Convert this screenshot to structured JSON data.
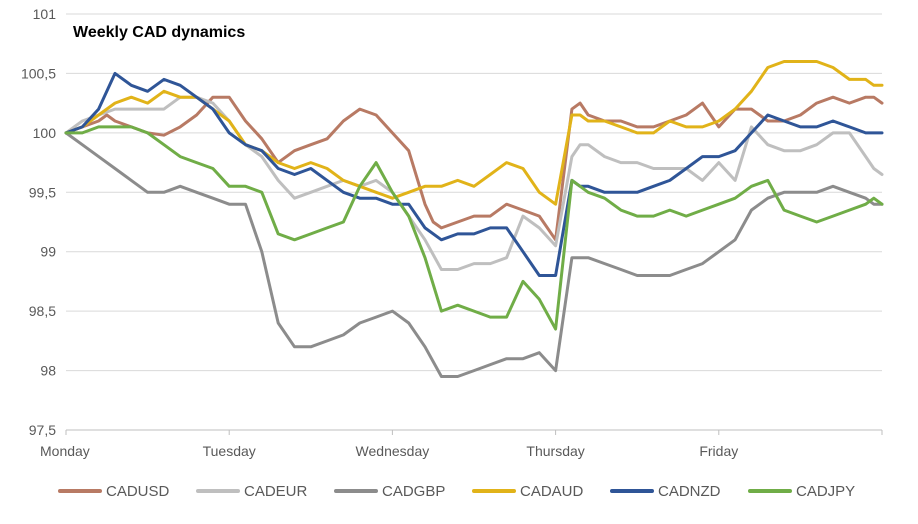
{
  "chart_data": {
    "type": "line",
    "title": "Weekly CAD dynamics",
    "xlabel": "",
    "ylabel": "",
    "x_tick_labels": [
      "Monday",
      "Tuesday",
      "Wednesday",
      "Thursday",
      "Friday"
    ],
    "y_ticks": [
      "97,5",
      "98",
      "98,5",
      "99",
      "99,5",
      "100",
      "100,5",
      "101"
    ],
    "y_tick_values": [
      97.5,
      98,
      98.5,
      99,
      99.5,
      100,
      100.5,
      101
    ],
    "ylim": [
      97.5,
      101
    ],
    "xlim": [
      0,
      5
    ],
    "grid": true,
    "legend_position": "bottom",
    "series": [
      {
        "name": "CADUSD",
        "color": "#B87A64",
        "x": [
          0,
          0.1,
          0.2,
          0.25,
          0.3,
          0.4,
          0.5,
          0.6,
          0.7,
          0.8,
          0.9,
          1.0,
          1.1,
          1.2,
          1.3,
          1.4,
          1.5,
          1.6,
          1.7,
          1.8,
          1.9,
          2.0,
          2.1,
          2.2,
          2.25,
          2.3,
          2.4,
          2.5,
          2.6,
          2.7,
          2.8,
          2.9,
          3.0,
          3.1,
          3.15,
          3.2,
          3.3,
          3.4,
          3.5,
          3.6,
          3.7,
          3.8,
          3.9,
          4.0,
          4.1,
          4.2,
          4.3,
          4.4,
          4.5,
          4.6,
          4.7,
          4.8,
          4.9,
          4.95,
          5.0
        ],
        "y": [
          100.0,
          100.05,
          100.1,
          100.15,
          100.1,
          100.05,
          100.0,
          99.98,
          100.05,
          100.15,
          100.3,
          100.3,
          100.1,
          99.95,
          99.75,
          99.85,
          99.9,
          99.95,
          100.1,
          100.2,
          100.15,
          100.0,
          99.85,
          99.4,
          99.25,
          99.2,
          99.25,
          99.3,
          99.3,
          99.4,
          99.35,
          99.3,
          99.1,
          100.2,
          100.25,
          100.15,
          100.1,
          100.1,
          100.05,
          100.05,
          100.1,
          100.15,
          100.25,
          100.05,
          100.2,
          100.2,
          100.1,
          100.1,
          100.15,
          100.25,
          100.3,
          100.25,
          100.3,
          100.3,
          100.25
        ]
      },
      {
        "name": "CADEUR",
        "color": "#BFBFBF",
        "x": [
          0,
          0.1,
          0.2,
          0.3,
          0.4,
          0.5,
          0.6,
          0.7,
          0.8,
          0.9,
          1.0,
          1.1,
          1.2,
          1.3,
          1.4,
          1.5,
          1.6,
          1.7,
          1.8,
          1.9,
          2.0,
          2.1,
          2.2,
          2.3,
          2.4,
          2.5,
          2.6,
          2.7,
          2.8,
          2.9,
          3.0,
          3.1,
          3.15,
          3.2,
          3.3,
          3.4,
          3.5,
          3.6,
          3.7,
          3.8,
          3.9,
          4.0,
          4.1,
          4.2,
          4.3,
          4.4,
          4.5,
          4.6,
          4.7,
          4.8,
          4.9,
          4.95,
          5.0
        ],
        "y": [
          100.0,
          100.1,
          100.15,
          100.2,
          100.2,
          100.2,
          100.2,
          100.3,
          100.3,
          100.25,
          100.1,
          99.9,
          99.8,
          99.6,
          99.45,
          99.5,
          99.55,
          99.6,
          99.55,
          99.6,
          99.5,
          99.3,
          99.1,
          98.85,
          98.85,
          98.9,
          98.9,
          98.95,
          99.3,
          99.2,
          99.05,
          99.8,
          99.9,
          99.9,
          99.8,
          99.75,
          99.75,
          99.7,
          99.7,
          99.7,
          99.6,
          99.75,
          99.6,
          100.05,
          99.9,
          99.85,
          99.85,
          99.9,
          100.0,
          100.0,
          99.8,
          99.7,
          99.65
        ]
      },
      {
        "name": "CADGBP",
        "color": "#8C8C8C",
        "x": [
          0,
          0.1,
          0.2,
          0.3,
          0.4,
          0.5,
          0.6,
          0.7,
          0.8,
          0.9,
          1.0,
          1.1,
          1.2,
          1.3,
          1.4,
          1.5,
          1.6,
          1.7,
          1.8,
          1.9,
          2.0,
          2.1,
          2.2,
          2.3,
          2.4,
          2.5,
          2.6,
          2.7,
          2.8,
          2.9,
          3.0,
          3.1,
          3.15,
          3.2,
          3.3,
          3.4,
          3.5,
          3.6,
          3.7,
          3.8,
          3.9,
          4.0,
          4.1,
          4.2,
          4.3,
          4.4,
          4.5,
          4.6,
          4.7,
          4.8,
          4.9,
          4.95,
          5.0
        ],
        "y": [
          100.0,
          99.9,
          99.8,
          99.7,
          99.6,
          99.5,
          99.5,
          99.55,
          99.5,
          99.45,
          99.4,
          99.4,
          99.0,
          98.4,
          98.2,
          98.2,
          98.25,
          98.3,
          98.4,
          98.45,
          98.5,
          98.4,
          98.2,
          97.95,
          97.95,
          98.0,
          98.05,
          98.1,
          98.1,
          98.15,
          98.0,
          98.95,
          98.95,
          98.95,
          98.9,
          98.85,
          98.8,
          98.8,
          98.8,
          98.85,
          98.9,
          99.0,
          99.1,
          99.35,
          99.45,
          99.5,
          99.5,
          99.5,
          99.55,
          99.5,
          99.45,
          99.4,
          99.4
        ]
      },
      {
        "name": "CADAUD",
        "color": "#E1B319",
        "x": [
          0,
          0.1,
          0.2,
          0.3,
          0.4,
          0.5,
          0.6,
          0.7,
          0.8,
          0.9,
          1.0,
          1.1,
          1.2,
          1.3,
          1.4,
          1.5,
          1.6,
          1.7,
          1.8,
          1.9,
          2.0,
          2.1,
          2.2,
          2.3,
          2.4,
          2.5,
          2.6,
          2.7,
          2.8,
          2.9,
          3.0,
          3.1,
          3.15,
          3.2,
          3.3,
          3.4,
          3.5,
          3.6,
          3.7,
          3.8,
          3.9,
          4.0,
          4.1,
          4.2,
          4.3,
          4.4,
          4.5,
          4.6,
          4.7,
          4.8,
          4.9,
          4.95,
          5.0
        ],
        "y": [
          100.0,
          100.05,
          100.15,
          100.25,
          100.3,
          100.25,
          100.35,
          100.3,
          100.3,
          100.2,
          100.1,
          99.9,
          99.85,
          99.75,
          99.7,
          99.75,
          99.7,
          99.6,
          99.55,
          99.5,
          99.45,
          99.5,
          99.55,
          99.55,
          99.6,
          99.55,
          99.65,
          99.75,
          99.7,
          99.5,
          99.4,
          100.15,
          100.15,
          100.1,
          100.1,
          100.05,
          100.0,
          100.0,
          100.1,
          100.05,
          100.05,
          100.1,
          100.2,
          100.35,
          100.55,
          100.6,
          100.6,
          100.6,
          100.55,
          100.45,
          100.45,
          100.4,
          100.4
        ]
      },
      {
        "name": "CADNZD",
        "color": "#2F5597",
        "x": [
          0,
          0.1,
          0.2,
          0.3,
          0.4,
          0.5,
          0.6,
          0.7,
          0.8,
          0.9,
          1.0,
          1.1,
          1.2,
          1.3,
          1.4,
          1.5,
          1.6,
          1.7,
          1.8,
          1.9,
          2.0,
          2.1,
          2.2,
          2.3,
          2.4,
          2.5,
          2.6,
          2.7,
          2.8,
          2.9,
          3.0,
          3.1,
          3.15,
          3.2,
          3.3,
          3.4,
          3.5,
          3.6,
          3.7,
          3.8,
          3.9,
          4.0,
          4.1,
          4.2,
          4.3,
          4.4,
          4.5,
          4.6,
          4.7,
          4.8,
          4.9,
          4.95,
          5.0
        ],
        "y": [
          100.0,
          100.05,
          100.2,
          100.5,
          100.4,
          100.35,
          100.45,
          100.4,
          100.3,
          100.2,
          100.0,
          99.9,
          99.85,
          99.7,
          99.65,
          99.7,
          99.6,
          99.5,
          99.45,
          99.45,
          99.4,
          99.4,
          99.2,
          99.1,
          99.15,
          99.15,
          99.2,
          99.2,
          99.0,
          98.8,
          98.8,
          99.6,
          99.55,
          99.55,
          99.5,
          99.5,
          99.5,
          99.55,
          99.6,
          99.7,
          99.8,
          99.8,
          99.85,
          100.0,
          100.15,
          100.1,
          100.05,
          100.05,
          100.1,
          100.05,
          100.0,
          100.0,
          100.0
        ]
      },
      {
        "name": "CADJPY",
        "color": "#70AD47",
        "x": [
          0,
          0.1,
          0.2,
          0.3,
          0.4,
          0.5,
          0.6,
          0.7,
          0.8,
          0.9,
          1.0,
          1.1,
          1.2,
          1.3,
          1.4,
          1.5,
          1.6,
          1.7,
          1.8,
          1.9,
          2.0,
          2.1,
          2.2,
          2.3,
          2.4,
          2.5,
          2.6,
          2.7,
          2.8,
          2.9,
          3.0,
          3.1,
          3.15,
          3.2,
          3.3,
          3.4,
          3.5,
          3.6,
          3.7,
          3.8,
          3.9,
          4.0,
          4.1,
          4.2,
          4.3,
          4.4,
          4.5,
          4.6,
          4.7,
          4.8,
          4.9,
          4.95,
          5.0
        ],
        "y": [
          100.0,
          100.0,
          100.05,
          100.05,
          100.05,
          100.0,
          99.9,
          99.8,
          99.75,
          99.7,
          99.55,
          99.55,
          99.5,
          99.15,
          99.1,
          99.15,
          99.2,
          99.25,
          99.55,
          99.75,
          99.5,
          99.3,
          98.95,
          98.5,
          98.55,
          98.5,
          98.45,
          98.45,
          98.75,
          98.6,
          98.35,
          99.6,
          99.55,
          99.5,
          99.45,
          99.35,
          99.3,
          99.3,
          99.35,
          99.3,
          99.35,
          99.4,
          99.45,
          99.55,
          99.6,
          99.35,
          99.3,
          99.25,
          99.3,
          99.35,
          99.4,
          99.45,
          99.4
        ]
      }
    ]
  }
}
